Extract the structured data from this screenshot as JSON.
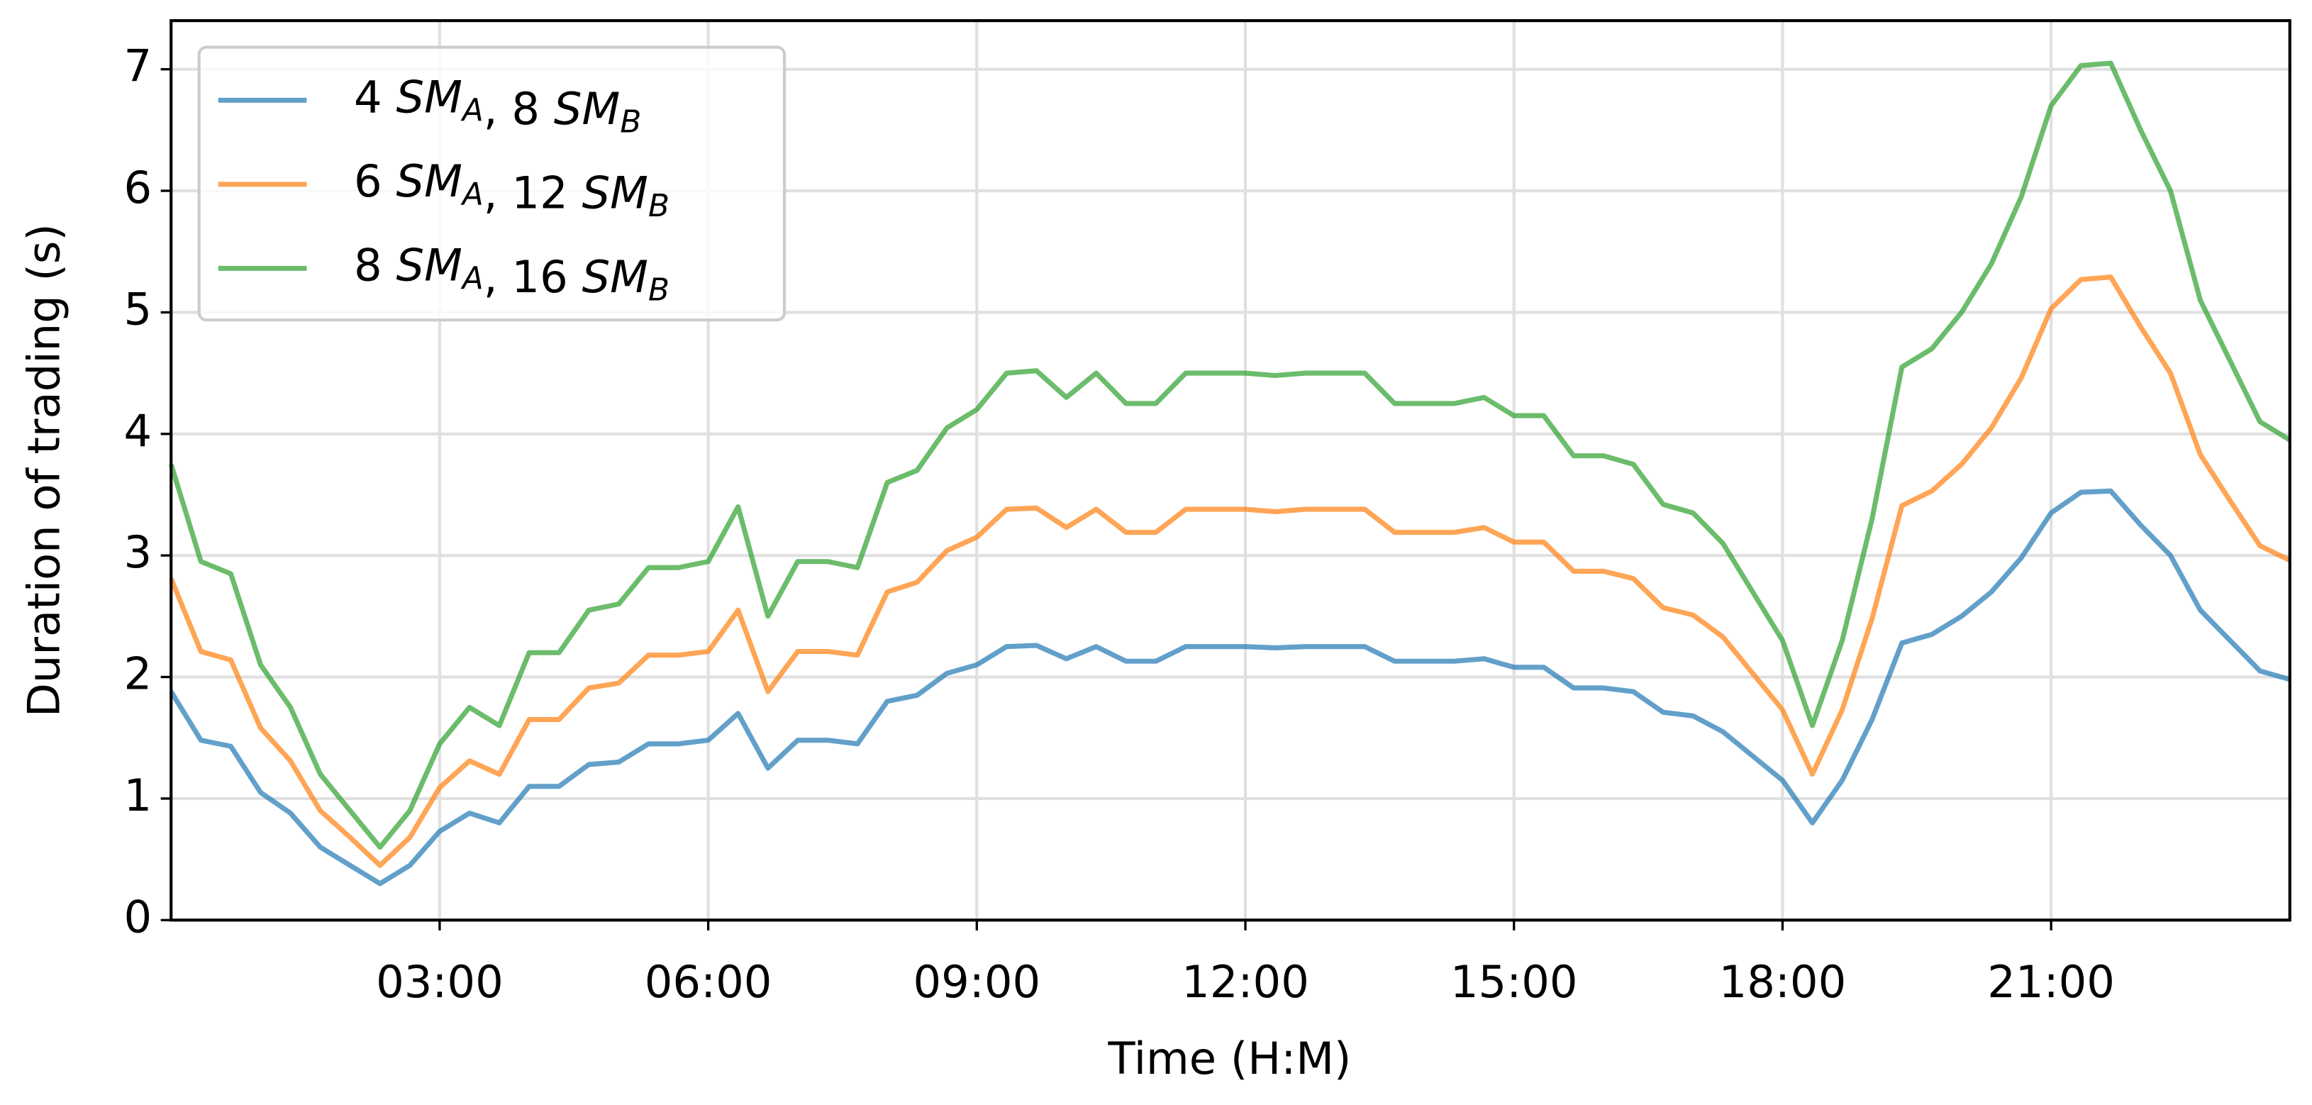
{
  "chart_data": {
    "type": "line",
    "x_label": "Time (H:M)",
    "y_label": "Duration of trading (s)",
    "x": [
      "00:00",
      "00:20",
      "00:40",
      "01:00",
      "01:20",
      "01:40",
      "02:00",
      "02:20",
      "02:40",
      "03:00",
      "03:20",
      "03:40",
      "04:00",
      "04:20",
      "04:40",
      "05:00",
      "05:20",
      "05:40",
      "06:00",
      "06:20",
      "06:40",
      "07:00",
      "07:20",
      "07:40",
      "08:00",
      "08:20",
      "08:40",
      "09:00",
      "09:20",
      "09:40",
      "10:00",
      "10:20",
      "10:40",
      "11:00",
      "11:20",
      "11:40",
      "12:00",
      "12:20",
      "12:40",
      "13:00",
      "13:20",
      "13:40",
      "14:00",
      "14:20",
      "14:40",
      "15:00",
      "15:20",
      "15:40",
      "16:00",
      "16:20",
      "16:40",
      "17:00",
      "17:20",
      "17:40",
      "18:00",
      "18:20",
      "18:40",
      "19:00",
      "19:20",
      "19:40",
      "20:00",
      "20:20",
      "20:40",
      "21:00",
      "21:20",
      "21:40",
      "22:00",
      "22:20",
      "22:40",
      "23:00",
      "23:20",
      "23:40"
    ],
    "series": [
      {
        "name": "4 SM_A, 8 SM_B",
        "color": "#1f77b4",
        "values": [
          1.88,
          1.48,
          1.43,
          1.05,
          0.88,
          0.6,
          0.45,
          0.3,
          0.45,
          0.73,
          0.88,
          0.8,
          1.1,
          1.1,
          1.28,
          1.3,
          1.45,
          1.45,
          1.48,
          1.7,
          1.25,
          1.48,
          1.48,
          1.45,
          1.8,
          1.85,
          2.03,
          2.1,
          2.25,
          2.26,
          2.15,
          2.25,
          2.13,
          2.13,
          2.25,
          2.25,
          2.25,
          2.24,
          2.25,
          2.25,
          2.25,
          2.13,
          2.13,
          2.13,
          2.15,
          2.08,
          2.08,
          1.91,
          1.91,
          1.88,
          1.71,
          1.68,
          1.55,
          1.35,
          1.15,
          0.8,
          1.15,
          1.65,
          2.28,
          2.35,
          2.5,
          2.7,
          2.98,
          3.35,
          3.52,
          3.53,
          3.25,
          3.0,
          2.55,
          2.3,
          2.05,
          1.98
        ]
      },
      {
        "name": "6 SM_A, 12 SM_B",
        "color": "#ff7f0e",
        "values": [
          2.81,
          2.21,
          2.14,
          1.58,
          1.31,
          0.9,
          0.68,
          0.45,
          0.68,
          1.09,
          1.31,
          1.2,
          1.65,
          1.65,
          1.91,
          1.95,
          2.18,
          2.18,
          2.21,
          2.55,
          1.88,
          2.21,
          2.21,
          2.18,
          2.7,
          2.78,
          3.04,
          3.15,
          3.38,
          3.39,
          3.23,
          3.38,
          3.19,
          3.19,
          3.38,
          3.38,
          3.38,
          3.36,
          3.38,
          3.38,
          3.38,
          3.19,
          3.19,
          3.19,
          3.23,
          3.11,
          3.11,
          2.87,
          2.87,
          2.81,
          2.57,
          2.51,
          2.33,
          2.03,
          1.73,
          1.2,
          1.73,
          2.48,
          3.41,
          3.53,
          3.75,
          4.05,
          4.46,
          5.03,
          5.27,
          5.29,
          4.88,
          4.5,
          3.83,
          3.45,
          3.08,
          2.96
        ]
      },
      {
        "name": "8 SM_A, 16 SM_B",
        "color": "#2ca02c",
        "values": [
          3.75,
          2.95,
          2.85,
          2.1,
          1.75,
          1.2,
          0.9,
          0.6,
          0.9,
          1.45,
          1.75,
          1.6,
          2.2,
          2.2,
          2.55,
          2.6,
          2.9,
          2.9,
          2.95,
          3.4,
          2.5,
          2.95,
          2.95,
          2.9,
          3.6,
          3.7,
          4.05,
          4.2,
          4.5,
          4.52,
          4.3,
          4.5,
          4.25,
          4.25,
          4.5,
          4.5,
          4.5,
          4.48,
          4.5,
          4.5,
          4.5,
          4.25,
          4.25,
          4.25,
          4.3,
          4.15,
          4.15,
          3.82,
          3.82,
          3.75,
          3.42,
          3.35,
          3.1,
          2.7,
          2.3,
          1.6,
          2.3,
          3.3,
          4.55,
          4.7,
          5.0,
          5.4,
          5.95,
          6.7,
          7.03,
          7.05,
          6.5,
          6.0,
          5.1,
          4.6,
          4.1,
          3.95
        ]
      }
    ],
    "xlim": [
      "00:00",
      "23:40"
    ],
    "xticks": [
      "03:00",
      "06:00",
      "09:00",
      "12:00",
      "15:00",
      "18:00",
      "21:00"
    ],
    "ylim": [
      0,
      7.4
    ],
    "yticks": [
      0,
      1,
      2,
      3,
      4,
      5,
      6,
      7
    ],
    "grid": true,
    "legend": "upper-left"
  }
}
